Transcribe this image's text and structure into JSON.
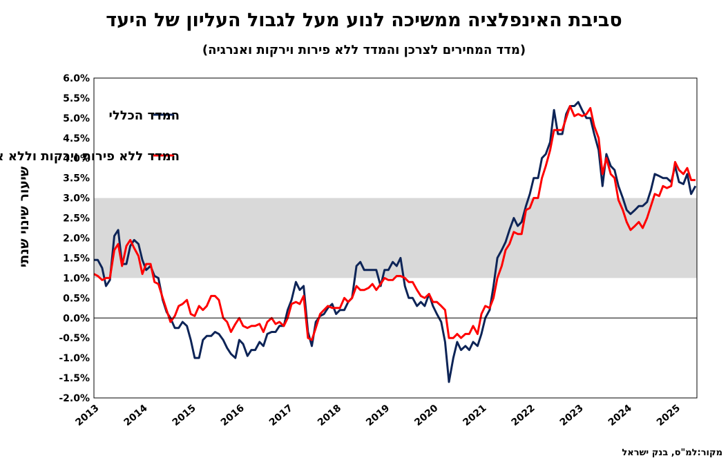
{
  "title": "סביבת האינפלציה ממשיכה לנוע מעל לגבול העליון של היעד",
  "subtitle": "(מדד המחירים לצרכן והמדד ללא פירות וירקות ואנרגיה)",
  "source": "מקור:למ\"ס, בנק ישראל",
  "chart_data": {
    "type": "line",
    "ylabel": "שיעור שינוי שנתי",
    "ylim": [
      -2.0,
      6.0
    ],
    "yticks": [
      "6.0%",
      "5.5%",
      "5.0%",
      "4.5%",
      "4.0%",
      "3.5%",
      "3.0%",
      "2.5%",
      "2.0%",
      "1.5%",
      "1.0%",
      "0.5%",
      "0.0%",
      "-0.5%",
      "-1.0%",
      "-1.5%",
      "-2.0%"
    ],
    "xlim": [
      2013.0,
      2025.45
    ],
    "xticks": [
      "2013",
      "2014",
      "2015",
      "2016",
      "2017",
      "2018",
      "2019",
      "2020",
      "2021",
      "2022",
      "2023",
      "2024",
      "2025"
    ],
    "target_band": [
      1.0,
      3.0
    ],
    "target_band_color": "#d9d9d9",
    "legend_position": "top-left",
    "series": [
      {
        "name": "המדד הכללי",
        "color": "#0d2457",
        "points": [
          [
            2013.0,
            1.45
          ],
          [
            2013.08,
            1.45
          ],
          [
            2013.17,
            1.25
          ],
          [
            2013.25,
            0.8
          ],
          [
            2013.33,
            0.95
          ],
          [
            2013.42,
            2.05
          ],
          [
            2013.5,
            2.2
          ],
          [
            2013.58,
            1.35
          ],
          [
            2013.67,
            1.35
          ],
          [
            2013.75,
            1.8
          ],
          [
            2013.83,
            1.95
          ],
          [
            2013.92,
            1.85
          ],
          [
            2014.0,
            1.45
          ],
          [
            2014.08,
            1.2
          ],
          [
            2014.17,
            1.3
          ],
          [
            2014.25,
            1.05
          ],
          [
            2014.33,
            1.0
          ],
          [
            2014.42,
            0.45
          ],
          [
            2014.5,
            0.15
          ],
          [
            2014.58,
            0.0
          ],
          [
            2014.67,
            -0.25
          ],
          [
            2014.75,
            -0.25
          ],
          [
            2014.83,
            -0.1
          ],
          [
            2014.92,
            -0.2
          ],
          [
            2015.0,
            -0.55
          ],
          [
            2015.08,
            -1.0
          ],
          [
            2015.17,
            -1.0
          ],
          [
            2015.25,
            -0.55
          ],
          [
            2015.33,
            -0.45
          ],
          [
            2015.42,
            -0.45
          ],
          [
            2015.5,
            -0.35
          ],
          [
            2015.58,
            -0.4
          ],
          [
            2015.67,
            -0.55
          ],
          [
            2015.75,
            -0.75
          ],
          [
            2015.83,
            -0.9
          ],
          [
            2015.92,
            -1.0
          ],
          [
            2016.0,
            -0.55
          ],
          [
            2016.08,
            -0.65
          ],
          [
            2016.17,
            -0.95
          ],
          [
            2016.25,
            -0.8
          ],
          [
            2016.33,
            -0.8
          ],
          [
            2016.42,
            -0.6
          ],
          [
            2016.5,
            -0.7
          ],
          [
            2016.58,
            -0.4
          ],
          [
            2016.67,
            -0.35
          ],
          [
            2016.75,
            -0.35
          ],
          [
            2016.83,
            -0.2
          ],
          [
            2016.92,
            -0.2
          ],
          [
            2017.0,
            0.2
          ],
          [
            2017.08,
            0.45
          ],
          [
            2017.17,
            0.9
          ],
          [
            2017.25,
            0.7
          ],
          [
            2017.33,
            0.8
          ],
          [
            2017.42,
            -0.35
          ],
          [
            2017.5,
            -0.7
          ],
          [
            2017.58,
            -0.1
          ],
          [
            2017.67,
            0.05
          ],
          [
            2017.75,
            0.1
          ],
          [
            2017.83,
            0.25
          ],
          [
            2017.92,
            0.35
          ],
          [
            2018.0,
            0.1
          ],
          [
            2018.08,
            0.2
          ],
          [
            2018.17,
            0.2
          ],
          [
            2018.25,
            0.4
          ],
          [
            2018.33,
            0.5
          ],
          [
            2018.42,
            1.3
          ],
          [
            2018.5,
            1.4
          ],
          [
            2018.58,
            1.2
          ],
          [
            2018.67,
            1.2
          ],
          [
            2018.75,
            1.2
          ],
          [
            2018.83,
            1.2
          ],
          [
            2018.92,
            0.8
          ],
          [
            2019.0,
            1.2
          ],
          [
            2019.08,
            1.2
          ],
          [
            2019.17,
            1.4
          ],
          [
            2019.25,
            1.3
          ],
          [
            2019.33,
            1.5
          ],
          [
            2019.42,
            0.8
          ],
          [
            2019.5,
            0.5
          ],
          [
            2019.58,
            0.5
          ],
          [
            2019.67,
            0.3
          ],
          [
            2019.75,
            0.4
          ],
          [
            2019.83,
            0.3
          ],
          [
            2019.92,
            0.6
          ],
          [
            2020.0,
            0.3
          ],
          [
            2020.08,
            0.1
          ],
          [
            2020.17,
            -0.1
          ],
          [
            2020.25,
            -0.6
          ],
          [
            2020.33,
            -1.6
          ],
          [
            2020.42,
            -1.0
          ],
          [
            2020.5,
            -0.6
          ],
          [
            2020.58,
            -0.8
          ],
          [
            2020.67,
            -0.7
          ],
          [
            2020.75,
            -0.8
          ],
          [
            2020.83,
            -0.6
          ],
          [
            2020.92,
            -0.7
          ],
          [
            2021.0,
            -0.4
          ],
          [
            2021.08,
            0.0
          ],
          [
            2021.17,
            0.2
          ],
          [
            2021.25,
            0.8
          ],
          [
            2021.33,
            1.5
          ],
          [
            2021.42,
            1.7
          ],
          [
            2021.5,
            1.9
          ],
          [
            2021.58,
            2.2
          ],
          [
            2021.67,
            2.5
          ],
          [
            2021.75,
            2.3
          ],
          [
            2021.83,
            2.4
          ],
          [
            2021.92,
            2.8
          ],
          [
            2022.0,
            3.1
          ],
          [
            2022.08,
            3.5
          ],
          [
            2022.17,
            3.5
          ],
          [
            2022.25,
            4.0
          ],
          [
            2022.33,
            4.1
          ],
          [
            2022.42,
            4.4
          ],
          [
            2022.5,
            5.2
          ],
          [
            2022.58,
            4.6
          ],
          [
            2022.67,
            4.6
          ],
          [
            2022.75,
            5.1
          ],
          [
            2022.83,
            5.3
          ],
          [
            2022.92,
            5.3
          ],
          [
            2023.0,
            5.4
          ],
          [
            2023.08,
            5.2
          ],
          [
            2023.17,
            5.0
          ],
          [
            2023.25,
            5.0
          ],
          [
            2023.33,
            4.6
          ],
          [
            2023.42,
            4.2
          ],
          [
            2023.5,
            3.3
          ],
          [
            2023.58,
            4.1
          ],
          [
            2023.67,
            3.8
          ],
          [
            2023.75,
            3.7
          ],
          [
            2023.83,
            3.3
          ],
          [
            2023.92,
            3.0
          ],
          [
            2024.0,
            2.7
          ],
          [
            2024.08,
            2.6
          ],
          [
            2024.17,
            2.7
          ],
          [
            2024.25,
            2.8
          ],
          [
            2024.33,
            2.8
          ],
          [
            2024.42,
            2.9
          ],
          [
            2024.5,
            3.2
          ],
          [
            2024.58,
            3.6
          ],
          [
            2024.67,
            3.55
          ],
          [
            2024.75,
            3.5
          ],
          [
            2024.83,
            3.5
          ],
          [
            2024.92,
            3.4
          ],
          [
            2025.0,
            3.8
          ],
          [
            2025.08,
            3.4
          ],
          [
            2025.17,
            3.35
          ],
          [
            2025.25,
            3.6
          ],
          [
            2025.33,
            3.1
          ],
          [
            2025.42,
            3.3
          ]
        ]
      },
      {
        "name": "המדד ללא פירות וירקות וללא אנרגיה",
        "color": "#ff0000",
        "points": [
          [
            2013.0,
            1.1
          ],
          [
            2013.08,
            1.05
          ],
          [
            2013.17,
            0.95
          ],
          [
            2013.25,
            1.0
          ],
          [
            2013.33,
            1.0
          ],
          [
            2013.42,
            1.7
          ],
          [
            2013.5,
            1.85
          ],
          [
            2013.58,
            1.3
          ],
          [
            2013.67,
            1.8
          ],
          [
            2013.75,
            1.95
          ],
          [
            2013.83,
            1.75
          ],
          [
            2013.92,
            1.55
          ],
          [
            2014.0,
            1.1
          ],
          [
            2014.08,
            1.35
          ],
          [
            2014.17,
            1.35
          ],
          [
            2014.25,
            0.9
          ],
          [
            2014.33,
            0.85
          ],
          [
            2014.42,
            0.5
          ],
          [
            2014.5,
            0.2
          ],
          [
            2014.58,
            -0.1
          ],
          [
            2014.67,
            0.05
          ],
          [
            2014.75,
            0.3
          ],
          [
            2014.83,
            0.35
          ],
          [
            2014.92,
            0.45
          ],
          [
            2015.0,
            0.1
          ],
          [
            2015.08,
            0.05
          ],
          [
            2015.17,
            0.3
          ],
          [
            2015.25,
            0.2
          ],
          [
            2015.33,
            0.3
          ],
          [
            2015.42,
            0.55
          ],
          [
            2015.5,
            0.55
          ],
          [
            2015.58,
            0.45
          ],
          [
            2015.67,
            0.0
          ],
          [
            2015.75,
            -0.1
          ],
          [
            2015.83,
            -0.35
          ],
          [
            2015.92,
            -0.15
          ],
          [
            2016.0,
            0.0
          ],
          [
            2016.08,
            -0.2
          ],
          [
            2016.17,
            -0.25
          ],
          [
            2016.25,
            -0.2
          ],
          [
            2016.33,
            -0.2
          ],
          [
            2016.42,
            -0.15
          ],
          [
            2016.5,
            -0.35
          ],
          [
            2016.58,
            -0.1
          ],
          [
            2016.67,
            0.0
          ],
          [
            2016.75,
            -0.15
          ],
          [
            2016.83,
            -0.1
          ],
          [
            2016.92,
            -0.2
          ],
          [
            2017.0,
            0.0
          ],
          [
            2017.08,
            0.35
          ],
          [
            2017.17,
            0.4
          ],
          [
            2017.25,
            0.35
          ],
          [
            2017.33,
            0.55
          ],
          [
            2017.42,
            -0.5
          ],
          [
            2017.5,
            -0.55
          ],
          [
            2017.58,
            -0.25
          ],
          [
            2017.67,
            0.1
          ],
          [
            2017.75,
            0.2
          ],
          [
            2017.83,
            0.3
          ],
          [
            2017.92,
            0.25
          ],
          [
            2018.0,
            0.25
          ],
          [
            2018.08,
            0.25
          ],
          [
            2018.17,
            0.5
          ],
          [
            2018.25,
            0.4
          ],
          [
            2018.33,
            0.5
          ],
          [
            2018.42,
            0.8
          ],
          [
            2018.5,
            0.7
          ],
          [
            2018.58,
            0.7
          ],
          [
            2018.67,
            0.75
          ],
          [
            2018.75,
            0.85
          ],
          [
            2018.83,
            0.7
          ],
          [
            2018.92,
            0.85
          ],
          [
            2019.0,
            1.0
          ],
          [
            2019.08,
            0.95
          ],
          [
            2019.17,
            0.95
          ],
          [
            2019.25,
            1.05
          ],
          [
            2019.33,
            1.05
          ],
          [
            2019.42,
            1.0
          ],
          [
            2019.5,
            0.9
          ],
          [
            2019.58,
            0.9
          ],
          [
            2019.67,
            0.7
          ],
          [
            2019.75,
            0.55
          ],
          [
            2019.83,
            0.5
          ],
          [
            2019.92,
            0.6
          ],
          [
            2020.0,
            0.4
          ],
          [
            2020.08,
            0.4
          ],
          [
            2020.17,
            0.3
          ],
          [
            2020.25,
            0.2
          ],
          [
            2020.33,
            -0.5
          ],
          [
            2020.42,
            -0.5
          ],
          [
            2020.5,
            -0.4
          ],
          [
            2020.58,
            -0.5
          ],
          [
            2020.67,
            -0.4
          ],
          [
            2020.75,
            -0.4
          ],
          [
            2020.83,
            -0.2
          ],
          [
            2020.92,
            -0.4
          ],
          [
            2021.0,
            0.1
          ],
          [
            2021.08,
            0.3
          ],
          [
            2021.17,
            0.25
          ],
          [
            2021.25,
            0.5
          ],
          [
            2021.33,
            1.0
          ],
          [
            2021.42,
            1.3
          ],
          [
            2021.5,
            1.7
          ],
          [
            2021.58,
            1.85
          ],
          [
            2021.67,
            2.15
          ],
          [
            2021.75,
            2.1
          ],
          [
            2021.83,
            2.1
          ],
          [
            2021.92,
            2.7
          ],
          [
            2022.0,
            2.75
          ],
          [
            2022.08,
            3.0
          ],
          [
            2022.17,
            3.0
          ],
          [
            2022.25,
            3.5
          ],
          [
            2022.33,
            3.8
          ],
          [
            2022.42,
            4.2
          ],
          [
            2022.5,
            4.7
          ],
          [
            2022.58,
            4.7
          ],
          [
            2022.67,
            4.7
          ],
          [
            2022.75,
            5.0
          ],
          [
            2022.83,
            5.3
          ],
          [
            2022.92,
            5.05
          ],
          [
            2023.0,
            5.1
          ],
          [
            2023.08,
            5.05
          ],
          [
            2023.17,
            5.1
          ],
          [
            2023.25,
            5.25
          ],
          [
            2023.33,
            4.8
          ],
          [
            2023.42,
            4.5
          ],
          [
            2023.5,
            3.6
          ],
          [
            2023.58,
            4.0
          ],
          [
            2023.67,
            3.6
          ],
          [
            2023.75,
            3.5
          ],
          [
            2023.83,
            2.95
          ],
          [
            2023.92,
            2.7
          ],
          [
            2024.0,
            2.4
          ],
          [
            2024.08,
            2.2
          ],
          [
            2024.17,
            2.3
          ],
          [
            2024.25,
            2.4
          ],
          [
            2024.33,
            2.25
          ],
          [
            2024.42,
            2.5
          ],
          [
            2024.5,
            2.8
          ],
          [
            2024.58,
            3.1
          ],
          [
            2024.67,
            3.05
          ],
          [
            2024.75,
            3.3
          ],
          [
            2024.83,
            3.25
          ],
          [
            2024.92,
            3.3
          ],
          [
            2025.0,
            3.9
          ],
          [
            2025.08,
            3.7
          ],
          [
            2025.17,
            3.6
          ],
          [
            2025.25,
            3.75
          ],
          [
            2025.33,
            3.45
          ],
          [
            2025.42,
            3.45
          ]
        ]
      }
    ]
  }
}
